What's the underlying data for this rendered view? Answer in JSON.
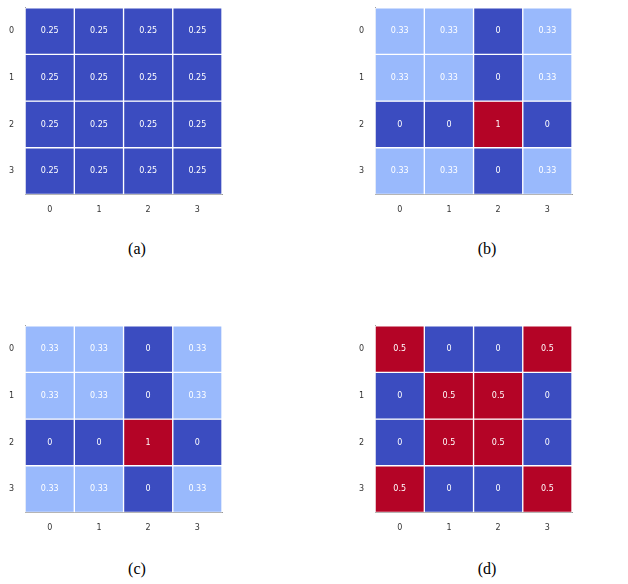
{
  "chart_data": [
    {
      "type": "heatmap",
      "title": "(a)",
      "xticks": [
        0,
        1,
        2,
        3
      ],
      "yticks": [
        0,
        1,
        2,
        3
      ],
      "ylim": [
        -0.5,
        3.5
      ],
      "data_labels": true,
      "cells": [
        [
          0.25,
          0.25,
          0.25,
          0.25
        ],
        [
          0.25,
          0.25,
          0.25,
          0.25
        ],
        [
          0.25,
          0.25,
          0.25,
          0.25
        ],
        [
          0.25,
          0.25,
          0.25,
          0.25
        ]
      ]
    },
    {
      "type": "heatmap",
      "title": "(b)",
      "xticks": [
        0,
        1,
        2,
        3
      ],
      "yticks": [
        0,
        1,
        2,
        3
      ],
      "ylim": [
        -0.5,
        3.5
      ],
      "data_labels": true,
      "cells": [
        [
          0.33,
          0.33,
          0,
          0.33
        ],
        [
          0.33,
          0.33,
          0,
          0.33
        ],
        [
          0,
          0,
          1,
          0
        ],
        [
          0.33,
          0.33,
          0,
          0.33
        ]
      ]
    },
    {
      "type": "heatmap",
      "title": "(c)",
      "xticks": [
        0,
        1,
        2,
        3
      ],
      "yticks": [
        0,
        1,
        2,
        3
      ],
      "ylim": [
        -0.5,
        3.5
      ],
      "data_labels": true,
      "cells": [
        [
          0.33,
          0.33,
          0,
          0.33
        ],
        [
          0.33,
          0.33,
          0,
          0.33
        ],
        [
          0,
          0,
          1,
          0
        ],
        [
          0.33,
          0.33,
          0,
          0.33
        ]
      ]
    },
    {
      "type": "heatmap",
      "title": "(d)",
      "xticks": [
        0,
        1,
        2,
        3
      ],
      "yticks": [
        0,
        1,
        2,
        3
      ],
      "ylim": [
        -0.5,
        3.5
      ],
      "data_labels": true,
      "cells": [
        [
          0.5,
          0,
          0,
          0.5
        ],
        [
          0,
          0.5,
          0.5,
          0
        ],
        [
          0,
          0.5,
          0.5,
          0
        ],
        [
          0.5,
          0,
          0,
          0.5
        ]
      ]
    }
  ]
}
